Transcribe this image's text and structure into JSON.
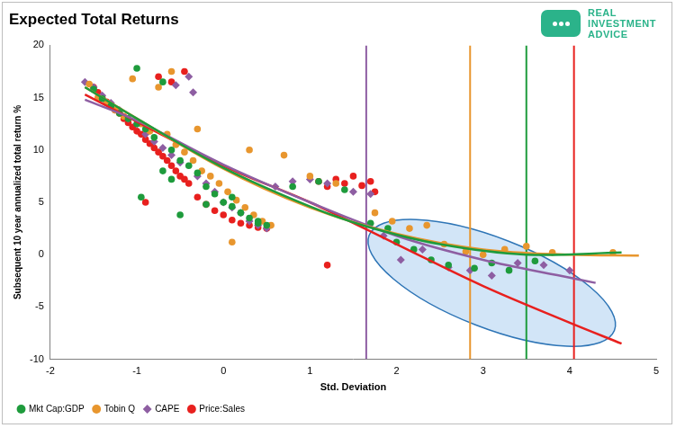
{
  "chart_data": {
    "type": "scatter",
    "title": "Expected Total Returns",
    "brand": [
      "REAL",
      "INVESTMENT",
      "ADVICE"
    ],
    "x_label": "Std. Deviation",
    "y_label": "Subsequent 10 year annualized total return %",
    "xlim": [
      -2,
      5
    ],
    "xticks": [
      -2,
      -1,
      0,
      1,
      2,
      3,
      4,
      5
    ],
    "ylim": [
      -10,
      20
    ],
    "yticks": [
      -10,
      -5,
      0,
      5,
      10,
      15,
      20
    ],
    "grid": false,
    "legend": "bottom-left",
    "series": [
      {
        "name": "Mkt Cap:GDP",
        "color": "#1e9b3c",
        "marker": "circle",
        "x": [
          -1.5,
          -1.4,
          -1.3,
          -1.2,
          -1.1,
          -1.0,
          -0.9,
          -0.8,
          -0.7,
          -0.6,
          -0.5,
          -0.4,
          -0.3,
          -0.2,
          -0.1,
          0.0,
          0.1,
          0.2,
          0.3,
          0.4,
          0.5,
          -1.0,
          -0.7,
          -0.5,
          -0.2,
          0.1,
          0.4,
          0.8,
          1.1,
          1.4,
          1.7,
          1.9,
          2.0,
          2.2,
          2.4,
          2.6,
          2.9,
          3.1,
          3.3,
          3.6,
          -0.95,
          -0.6
        ],
        "values": [
          15.8,
          14.9,
          14.2,
          13.5,
          13.0,
          17.8,
          12.0,
          11.2,
          16.5,
          10.0,
          9.0,
          8.5,
          7.8,
          6.5,
          5.8,
          5.0,
          4.6,
          4.0,
          3.5,
          3.0,
          2.8,
          12.5,
          8.0,
          3.8,
          4.8,
          5.5,
          3.2,
          6.5,
          7.0,
          6.2,
          3.0,
          2.5,
          1.2,
          0.5,
          -0.5,
          -1.0,
          -1.3,
          -0.8,
          -1.5,
          -0.6,
          5.5,
          7.2
        ],
        "trend": {
          "x": [
            -1.6,
            -1.0,
            0.0,
            1.0,
            1.65,
            2.5,
            3.5,
            4.6
          ],
          "values": [
            16.0,
            13.0,
            8.3,
            4.6,
            2.7,
            1.0,
            0.0,
            0.2
          ]
        }
      },
      {
        "name": "Tobin Q",
        "color": "#e8962e",
        "marker": "circle",
        "x": [
          -1.55,
          -1.45,
          -1.35,
          -1.25,
          -1.15,
          -1.05,
          -0.95,
          -0.85,
          -0.75,
          -0.65,
          -0.55,
          -0.45,
          -0.35,
          -0.25,
          -0.15,
          -0.05,
          0.05,
          0.15,
          0.25,
          0.35,
          0.45,
          0.55,
          -0.6,
          -0.3,
          0.1,
          0.3,
          0.7,
          1.0,
          1.3,
          1.75,
          1.95,
          2.15,
          2.35,
          2.55,
          2.8,
          3.0,
          3.25,
          3.5,
          3.8,
          4.5
        ],
        "values": [
          16.3,
          15.0,
          14.5,
          13.8,
          13.2,
          16.8,
          12.5,
          11.8,
          16.0,
          11.5,
          10.5,
          9.8,
          9.0,
          8.0,
          7.5,
          6.8,
          6.0,
          5.2,
          4.5,
          3.8,
          3.2,
          2.8,
          17.5,
          12.0,
          1.2,
          10.0,
          9.5,
          7.5,
          6.8,
          4.0,
          3.2,
          2.5,
          2.8,
          1.0,
          0.3,
          0.0,
          0.5,
          0.8,
          0.2,
          0.2
        ],
        "trend": {
          "x": [
            -1.6,
            0.0,
            1.0,
            2.0,
            3.0,
            4.0,
            4.8
          ],
          "values": [
            16.0,
            8.2,
            4.5,
            2.0,
            0.5,
            0.0,
            -0.1
          ]
        }
      },
      {
        "name": "CAPE",
        "color": "#8e5ea2",
        "marker": "diamond",
        "x": [
          -1.6,
          -1.5,
          -1.4,
          -1.3,
          -1.2,
          -1.1,
          -1.0,
          -0.9,
          -0.8,
          -0.7,
          -0.6,
          -0.5,
          -0.4,
          -0.3,
          -0.2,
          -0.1,
          0.0,
          0.1,
          0.2,
          0.3,
          0.4,
          0.5,
          -0.55,
          -0.35,
          0.6,
          0.8,
          1.0,
          1.2,
          1.5,
          1.7,
          1.85,
          2.05,
          2.3,
          2.6,
          2.85,
          3.1,
          3.4,
          3.7,
          4.0
        ],
        "values": [
          16.5,
          16.0,
          15.2,
          14.5,
          13.8,
          13.0,
          12.5,
          11.5,
          10.8,
          10.2,
          9.5,
          8.8,
          17.0,
          7.5,
          6.8,
          6.0,
          5.0,
          4.5,
          4.0,
          3.2,
          2.8,
          2.5,
          16.2,
          15.5,
          6.5,
          7.0,
          7.2,
          6.8,
          6.0,
          5.8,
          1.8,
          -0.5,
          0.5,
          -1.2,
          -1.5,
          -2.0,
          -0.8,
          -1.0,
          -1.5
        ],
        "trend": {
          "x": [
            -1.6,
            -1.0,
            0.0,
            1.0,
            2.0,
            3.0,
            4.0,
            4.3
          ],
          "values": [
            14.8,
            12.8,
            8.6,
            5.0,
            1.8,
            -0.5,
            -2.2,
            -2.7
          ]
        }
      },
      {
        "name": "Price:Sales",
        "color": "#e8201e",
        "marker": "circle",
        "x": [
          -1.5,
          -1.45,
          -1.4,
          -1.35,
          -1.3,
          -1.25,
          -1.2,
          -1.15,
          -1.1,
          -1.05,
          -1.0,
          -0.95,
          -0.9,
          -0.85,
          -0.8,
          -0.75,
          -0.7,
          -0.65,
          -0.6,
          -0.55,
          -0.5,
          -0.45,
          -0.4,
          -0.3,
          -0.2,
          -0.1,
          0.0,
          0.1,
          0.2,
          0.3,
          0.4,
          0.5,
          -0.75,
          -0.6,
          -0.45,
          -0.9,
          1.1,
          1.2,
          1.3,
          1.4,
          1.5,
          1.6,
          1.7,
          1.2,
          1.75
        ],
        "values": [
          16.0,
          15.5,
          15.0,
          14.6,
          14.2,
          13.8,
          13.5,
          13.0,
          12.6,
          12.2,
          11.8,
          11.5,
          11.0,
          10.6,
          10.2,
          9.8,
          9.4,
          9.0,
          8.5,
          8.0,
          7.5,
          7.2,
          6.8,
          5.5,
          4.8,
          4.2,
          3.8,
          3.3,
          3.0,
          2.8,
          2.6,
          2.5,
          17.0,
          16.5,
          17.5,
          5.0,
          7.0,
          6.5,
          7.2,
          6.8,
          7.5,
          6.6,
          7.0,
          -1.0,
          6.0
        ],
        "trend": {
          "x": [
            -1.6,
            0.0,
            1.0,
            2.0,
            3.0,
            4.0,
            4.6
          ],
          "values": [
            15.3,
            8.5,
            5.0,
            1.0,
            -3.0,
            -6.5,
            -8.5
          ]
        }
      }
    ],
    "vertical_lines": [
      {
        "x": 1.65,
        "color": "#8e5ea2"
      },
      {
        "x": 2.85,
        "color": "#e8962e"
      },
      {
        "x": 3.5,
        "color": "#1e9b3c"
      },
      {
        "x": 4.05,
        "color": "#e8201e"
      }
    ],
    "highlight_ellipse": {
      "center": [
        3.1,
        -2.7
      ],
      "x_radius": 1.52,
      "y_radius": 4.3,
      "color": "#2e75b6"
    }
  }
}
